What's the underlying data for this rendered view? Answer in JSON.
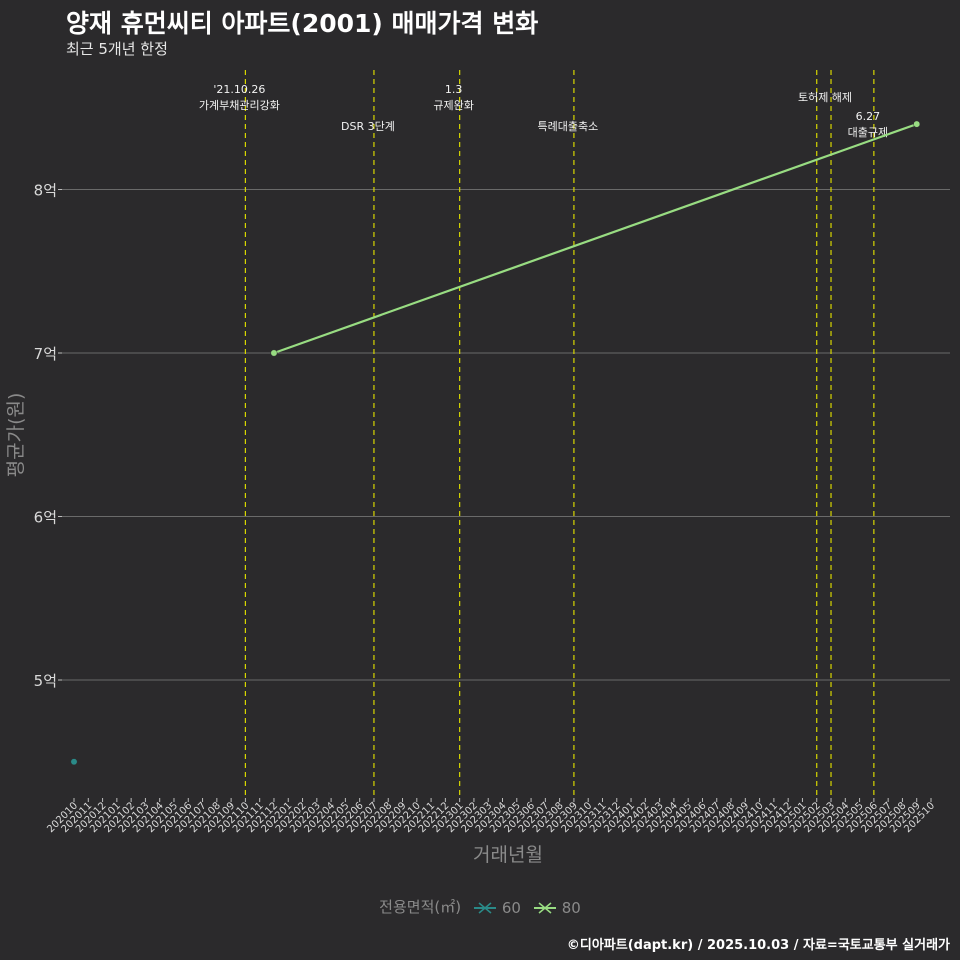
{
  "chart_data": {
    "type": "line",
    "title": "양재 휴먼씨티 아파트(2001) 매매가격 변화",
    "subtitle": "최근 5개년 한정",
    "xlabel": "거래년월",
    "ylabel": "평균가(원)",
    "categories": [
      "202010",
      "202011",
      "202012",
      "202101",
      "202102",
      "202103",
      "202104",
      "202105",
      "202106",
      "202107",
      "202108",
      "202109",
      "202110",
      "202111",
      "202112",
      "202201",
      "202202",
      "202203",
      "202204",
      "202205",
      "202206",
      "202207",
      "202208",
      "202209",
      "202210",
      "202211",
      "202212",
      "202301",
      "202302",
      "202303",
      "202304",
      "202305",
      "202306",
      "202307",
      "202308",
      "202309",
      "202310",
      "202311",
      "202312",
      "202401",
      "202402",
      "202403",
      "202404",
      "202405",
      "202406",
      "202407",
      "202408",
      "202409",
      "202410",
      "202411",
      "202412",
      "202501",
      "202502",
      "202503",
      "202504",
      "202505",
      "202506",
      "202507",
      "202508",
      "202509",
      "202510"
    ],
    "y_ticks": [
      {
        "value": 5,
        "label": "5억"
      },
      {
        "value": 6,
        "label": "6억"
      },
      {
        "value": 7,
        "label": "7억"
      },
      {
        "value": 8,
        "label": "8억"
      }
    ],
    "ylim": [
      4.3,
      8.7
    ],
    "y_unit": "억",
    "series": [
      {
        "name": "60",
        "color": "#2a8a88",
        "points": [
          {
            "x": "202010",
            "y": 4.5
          }
        ]
      },
      {
        "name": "80",
        "color": "#98dc82",
        "points": [
          {
            "x": "202112",
            "y": 7.0
          },
          {
            "x": "202509",
            "y": 8.4
          }
        ]
      }
    ],
    "events": [
      {
        "x": "202110",
        "lines": [
          "'21.10.26",
          "가계부채관리강화"
        ],
        "row": 0
      },
      {
        "x": "202207",
        "lines": [
          "DSR 3단계"
        ],
        "row": 2
      },
      {
        "x": "202301",
        "lines": [
          "1.3",
          "규제완화"
        ],
        "row": 0
      },
      {
        "x": "202309",
        "lines": [
          "특례대출축소"
        ],
        "row": 2
      },
      {
        "x": "202502",
        "lines": [],
        "row": 0
      },
      {
        "x": "202503",
        "lines": [
          "토허제 해제"
        ],
        "row": 1
      },
      {
        "x": "202506",
        "lines": [
          "6.27",
          "대출규제"
        ],
        "row": 2
      }
    ],
    "legend": {
      "title": "전용면적(㎡)",
      "position": "bottom"
    }
  },
  "caption": "©디아파트(dapt.kr) / 2025.10.03 / 자료=국토교통부 실거래가"
}
